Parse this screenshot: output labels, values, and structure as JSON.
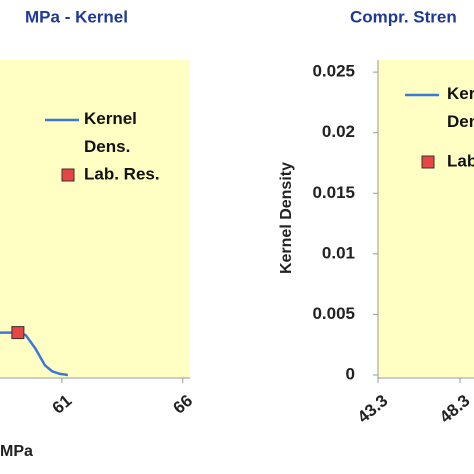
{
  "chart_data": [
    {
      "type": "line",
      "title": "MPa - Kernel",
      "x_label": "MPa",
      "xlim": [
        58.44,
        66.3
      ],
      "xticks": [
        61,
        66
      ],
      "ylim": [
        0,
        0.026
      ],
      "series": [
        {
          "name": "Kernel Dens.",
          "color": "#3c78d8",
          "x": [
            58.44,
            59.2,
            59.5,
            59.9,
            60.3,
            60.6,
            60.9,
            61.25
          ],
          "values": [
            0.0035,
            0.0035,
            0.0033,
            0.0022,
            0.0008,
            0.0003,
            0.0001,
            0
          ]
        },
        {
          "name": "Lab. Res.",
          "color": "#e84545",
          "marker": "square",
          "x": [
            59.18
          ],
          "values": [
            0.0035
          ]
        }
      ]
    },
    {
      "type": "line",
      "title": "Compr. Stren",
      "y_label": "Kernel Density",
      "xlim": [
        43.3,
        49.15
      ],
      "xticks": [
        43.3,
        48.3
      ],
      "ylim": [
        0,
        0.026
      ],
      "yticks": [
        0,
        0.005,
        0.01,
        0.015,
        0.02,
        0.025
      ],
      "series": [
        {
          "name": "Kernel Dens.",
          "color": "#3c78d8",
          "x": [],
          "values": []
        },
        {
          "name": "Lab. Res.",
          "color": "#e84545",
          "marker": "square",
          "x": [],
          "values": []
        }
      ]
    }
  ]
}
